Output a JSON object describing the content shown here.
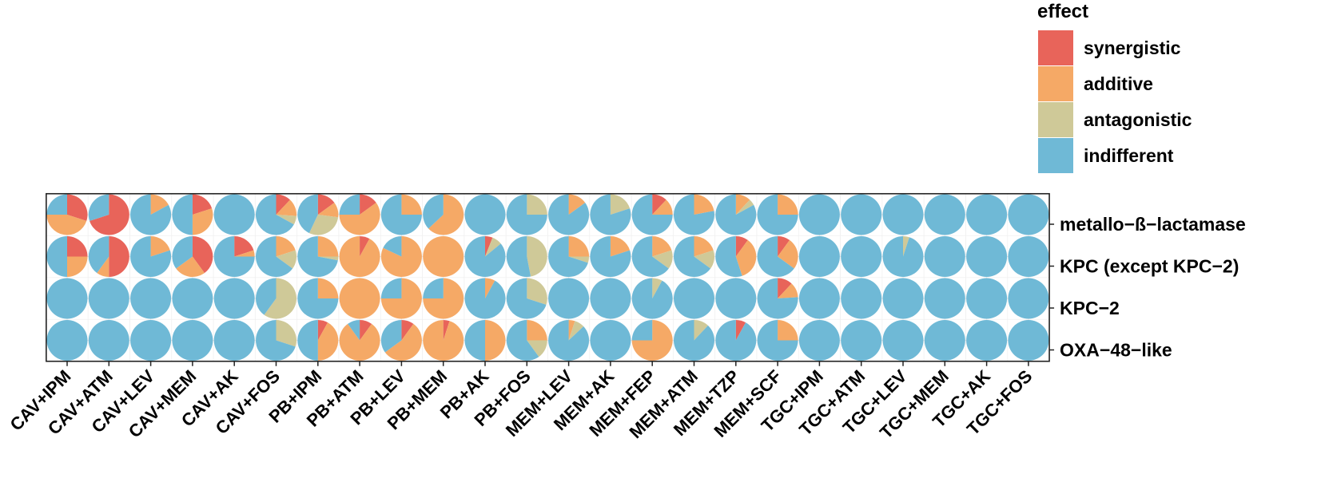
{
  "chart_data": {
    "type": "pie-matrix",
    "legend": {
      "title": "effect",
      "items": [
        {
          "label": "synergistic",
          "color": "#E8645A"
        },
        {
          "label": "additive",
          "color": "#F5A966"
        },
        {
          "label": "antagonistic",
          "color": "#CFC998"
        },
        {
          "label": "indifferent",
          "color": "#6FB9D6"
        }
      ]
    },
    "rows": [
      "metallo−ß−lactamase",
      "KPC (except KPC−2)",
      "KPC−2",
      "OXA−48−like"
    ],
    "columns": [
      "CAV+IPM",
      "CAV+ATM",
      "CAV+LEV",
      "CAV+MEM",
      "CAV+AK",
      "CAV+FOS",
      "PB+IPM",
      "PB+ATM",
      "PB+LEV",
      "PB+MEM",
      "PB+AK",
      "PB+FOS",
      "MEM+LEV",
      "MEM+AK",
      "MEM+FEP",
      "MEM+ATM",
      "MEM+TZP",
      "MEM+SCF",
      "TGC+IPM",
      "TGC+ATM",
      "TGC+LEV",
      "TGC+MEM",
      "TGC+AK",
      "TGC+FOS"
    ],
    "value_order": [
      "synergistic",
      "additive",
      "antagonistic",
      "indifferent"
    ],
    "proportions": [
      [
        [
          0.3,
          0.45,
          0,
          0.25
        ],
        [
          0.7,
          0,
          0,
          0.3
        ],
        [
          0,
          0.17,
          0,
          0.83
        ],
        [
          0.2,
          0.3,
          0,
          0.5
        ],
        [
          0,
          0,
          0,
          1
        ],
        [
          0.12,
          0.14,
          0.07,
          0.67
        ],
        [
          0.15,
          0.12,
          0.3,
          0.43
        ],
        [
          0.15,
          0.6,
          0,
          0.25
        ],
        [
          0,
          0.25,
          0,
          0.75
        ],
        [
          0,
          0.63,
          0,
          0.37
        ],
        [
          0,
          0,
          0,
          1
        ],
        [
          0,
          0,
          0.25,
          0.75
        ],
        [
          0,
          0.15,
          0,
          0.85
        ],
        [
          0,
          0,
          0.2,
          0.8
        ],
        [
          0.12,
          0.13,
          0,
          0.75
        ],
        [
          0,
          0.22,
          0,
          0.78
        ],
        [
          0,
          0.12,
          0.05,
          0.83
        ],
        [
          0,
          0.25,
          0,
          0.75
        ],
        [
          0,
          0,
          0,
          1
        ],
        [
          0,
          0,
          0,
          1
        ],
        [
          0,
          0,
          0,
          1
        ],
        [
          0,
          0,
          0,
          1
        ],
        [
          0,
          0,
          0,
          1
        ],
        [
          0,
          0,
          0,
          1
        ]
      ],
      [
        [
          0.25,
          0.25,
          0,
          0.5
        ],
        [
          0.5,
          0.1,
          0,
          0.4
        ],
        [
          0,
          0.2,
          0,
          0.8
        ],
        [
          0.4,
          0.25,
          0,
          0.35
        ],
        [
          0.2,
          0.05,
          0,
          0.75
        ],
        [
          0,
          0.2,
          0.15,
          0.65
        ],
        [
          0,
          0.25,
          0.03,
          0.72
        ],
        [
          0.08,
          0.92,
          0,
          0
        ],
        [
          0,
          0.82,
          0,
          0.18
        ],
        [
          0,
          1,
          0,
          0
        ],
        [
          0.06,
          0,
          0.08,
          0.86
        ],
        [
          0,
          0,
          0.47,
          0.53
        ],
        [
          0,
          0.25,
          0.05,
          0.7
        ],
        [
          0,
          0.2,
          0,
          0.8
        ],
        [
          0,
          0.2,
          0.15,
          0.65
        ],
        [
          0,
          0.2,
          0.15,
          0.65
        ],
        [
          0.1,
          0.35,
          0,
          0.55
        ],
        [
          0.1,
          0.25,
          0,
          0.65
        ],
        [
          0,
          0,
          0,
          1
        ],
        [
          0,
          0,
          0,
          1
        ],
        [
          0,
          0,
          0.05,
          0.95
        ],
        [
          0,
          0,
          0,
          1
        ],
        [
          0,
          0,
          0,
          1
        ],
        [
          0,
          0,
          0,
          1
        ]
      ],
      [
        [
          0,
          0,
          0,
          1
        ],
        [
          0,
          0,
          0,
          1
        ],
        [
          0,
          0,
          0,
          1
        ],
        [
          0,
          0,
          0,
          1
        ],
        [
          0,
          0,
          0,
          1
        ],
        [
          0,
          0,
          0.6,
          0.4
        ],
        [
          0,
          0.25,
          0,
          0.75
        ],
        [
          0,
          1,
          0,
          0
        ],
        [
          0,
          0.75,
          0,
          0.25
        ],
        [
          0,
          0.75,
          0,
          0.25
        ],
        [
          0,
          0.08,
          0,
          0.92
        ],
        [
          0,
          0,
          0.3,
          0.7
        ],
        [
          0,
          0,
          0,
          1
        ],
        [
          0,
          0,
          0,
          1
        ],
        [
          0,
          0,
          0.08,
          0.92
        ],
        [
          0,
          0,
          0,
          1
        ],
        [
          0,
          0,
          0,
          1
        ],
        [
          0.12,
          0.12,
          0,
          0.76
        ],
        [
          0,
          0,
          0,
          1
        ],
        [
          0,
          0,
          0,
          1
        ],
        [
          0,
          0,
          0,
          1
        ],
        [
          0,
          0,
          0,
          1
        ],
        [
          0,
          0,
          0,
          1
        ],
        [
          0,
          0,
          0,
          1
        ]
      ],
      [
        [
          0,
          0,
          0,
          1
        ],
        [
          0,
          0,
          0,
          1
        ],
        [
          0,
          0,
          0,
          1
        ],
        [
          0,
          0,
          0,
          1
        ],
        [
          0,
          0,
          0,
          1
        ],
        [
          0,
          0,
          0.3,
          0.7
        ],
        [
          0.08,
          0.42,
          0,
          0.5
        ],
        [
          0.1,
          0.8,
          0,
          0.1
        ],
        [
          0.1,
          0.55,
          0,
          0.35
        ],
        [
          0.05,
          0.95,
          0,
          0
        ],
        [
          0,
          0.5,
          0,
          0.5
        ],
        [
          0,
          0.25,
          0.15,
          0.6
        ],
        [
          0,
          0.05,
          0.08,
          0.87
        ],
        [
          0,
          0,
          0,
          1
        ],
        [
          0,
          0.75,
          0,
          0.25
        ],
        [
          0,
          0,
          0.12,
          0.88
        ],
        [
          0.08,
          0,
          0,
          0.92
        ],
        [
          0,
          0.25,
          0,
          0.75
        ],
        [
          0,
          0,
          0,
          1
        ],
        [
          0,
          0,
          0,
          1
        ],
        [
          0,
          0,
          0,
          1
        ],
        [
          0,
          0,
          0,
          1
        ],
        [
          0,
          0,
          0,
          1
        ],
        [
          0,
          0,
          0,
          1
        ]
      ]
    ],
    "grid": true,
    "legend_position": "top-right"
  }
}
